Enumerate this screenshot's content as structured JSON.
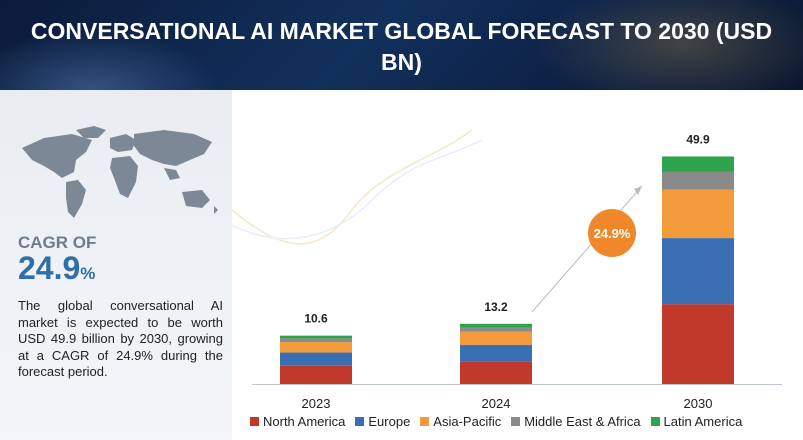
{
  "header": {
    "title": "CONVERSATIONAL AI MARKET GLOBAL FORECAST TO 2030 (USD BN)"
  },
  "summary": {
    "cagr_label": "CAGR OF",
    "cagr_value": "24.9",
    "cagr_unit": "%",
    "description": "The global conversational AI market is expected to be worth USD 49.9 billion by 2030, growing at a CAGR of 24.9% during the forecast period."
  },
  "badge": {
    "text": "24.9%",
    "color": "#f0872a"
  },
  "icons": {
    "map": "world-map-icon"
  },
  "chart_data": {
    "type": "bar",
    "stacked": true,
    "categories": [
      "2023",
      "2024",
      "2030"
    ],
    "totals": [
      "10.6",
      "13.2",
      "49.9"
    ],
    "series": [
      {
        "name": "North America",
        "color": "#c0392b",
        "values": [
          4.0,
          4.9,
          17.5
        ]
      },
      {
        "name": "Europe",
        "color": "#3a6fb3",
        "values": [
          2.9,
          3.7,
          14.5
        ]
      },
      {
        "name": "Asia-Pacific",
        "color": "#f39a3b",
        "values": [
          2.3,
          2.9,
          10.6
        ]
      },
      {
        "name": "Middle East & Africa",
        "color": "#8a8a8a",
        "values": [
          0.8,
          1.0,
          4.0
        ]
      },
      {
        "name": "Latin America",
        "color": "#2ea44f",
        "values": [
          0.6,
          0.7,
          3.3
        ]
      }
    ],
    "ylim": [
      0,
      50
    ],
    "grid": false,
    "legend_position": "bottom"
  }
}
